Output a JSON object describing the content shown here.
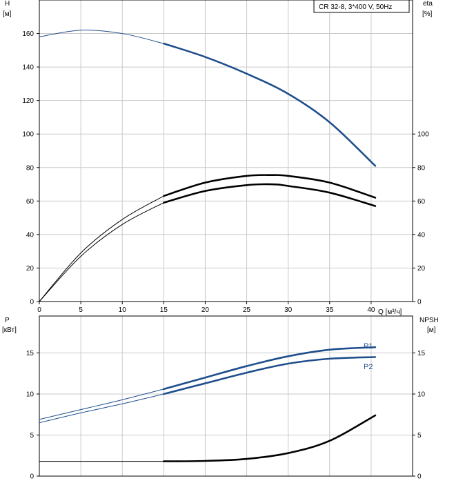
{
  "chart_data": [
    {
      "type": "line",
      "title": "CR 32-8, 3*400 V, 50Hz",
      "left_axis": {
        "label_line1": "H",
        "label_line2": "[м]",
        "ylim": [
          0,
          180
        ],
        "ticks": [
          0,
          20,
          40,
          60,
          80,
          100,
          120,
          140,
          160
        ]
      },
      "right_axis": {
        "label_line1": "eta",
        "label_line2": "[%]",
        "ylim": [
          0,
          180
        ],
        "ticks": [
          0,
          20,
          40,
          60,
          80,
          100
        ]
      },
      "x_axis": {
        "label": "Q [м³/ч]",
        "xlim": [
          0,
          45
        ],
        "ticks": [
          0,
          5,
          10,
          15,
          20,
          25,
          30,
          35,
          40
        ]
      },
      "grid": true,
      "series": [
        {
          "key": "head",
          "color": "#1f4e8c",
          "axis": "left",
          "thin_until": 15,
          "x": [
            0,
            5,
            10,
            15,
            20,
            25,
            30,
            35,
            40.5
          ],
          "y": [
            158,
            162,
            160,
            154,
            146,
            136,
            124,
            107,
            81
          ]
        },
        {
          "key": "eta_pump",
          "color": "#000000",
          "axis": "right",
          "thin_until": 15,
          "x": [
            0,
            5,
            10,
            15,
            20,
            25,
            28,
            30,
            35,
            40.5
          ],
          "y": [
            0,
            29,
            49,
            63,
            71,
            75,
            75.5,
            75,
            71,
            62
          ]
        },
        {
          "key": "eta_total",
          "color": "#000000",
          "axis": "right",
          "thin_until": 15,
          "x": [
            0,
            5,
            10,
            15,
            20,
            25,
            28,
            30,
            35,
            40.5
          ],
          "y": [
            0,
            27,
            46,
            59,
            66,
            69.5,
            70,
            69,
            65,
            57
          ]
        }
      ]
    },
    {
      "type": "line",
      "left_axis": {
        "label_line1": "P",
        "label_line2": "[кВт]",
        "ylim": [
          0,
          19.5
        ],
        "ticks": [
          0,
          5,
          10,
          15
        ]
      },
      "right_axis": {
        "label_line1": "NPSH",
        "label_line2": "[м]",
        "ylim": [
          0,
          19.5
        ],
        "ticks": [
          0,
          5,
          10,
          15
        ]
      },
      "x_axis": {
        "xlim": [
          0,
          45
        ]
      },
      "grid": true,
      "series": [
        {
          "key": "p1",
          "name": "P1",
          "color": "#1f4e8c",
          "axis": "left",
          "thin_until": 15,
          "x": [
            0,
            5,
            10,
            15,
            20,
            25,
            30,
            35,
            40.5
          ],
          "y": [
            6.9,
            8.1,
            9.3,
            10.6,
            12.0,
            13.4,
            14.6,
            15.4,
            15.7
          ]
        },
        {
          "key": "p2",
          "name": "P2",
          "color": "#1f4e8c",
          "axis": "left",
          "thin_until": 15,
          "x": [
            0,
            5,
            10,
            15,
            20,
            25,
            30,
            35,
            40.5
          ],
          "y": [
            6.5,
            7.7,
            8.8,
            10.0,
            11.3,
            12.6,
            13.7,
            14.3,
            14.5
          ]
        },
        {
          "key": "npsh",
          "color": "#000000",
          "axis": "right",
          "thin_until": 15,
          "x": [
            0,
            5,
            10,
            15,
            20,
            25,
            30,
            35,
            40.5
          ],
          "y": [
            1.8,
            1.8,
            1.8,
            1.8,
            1.85,
            2.1,
            2.8,
            4.3,
            7.4
          ]
        }
      ]
    }
  ]
}
